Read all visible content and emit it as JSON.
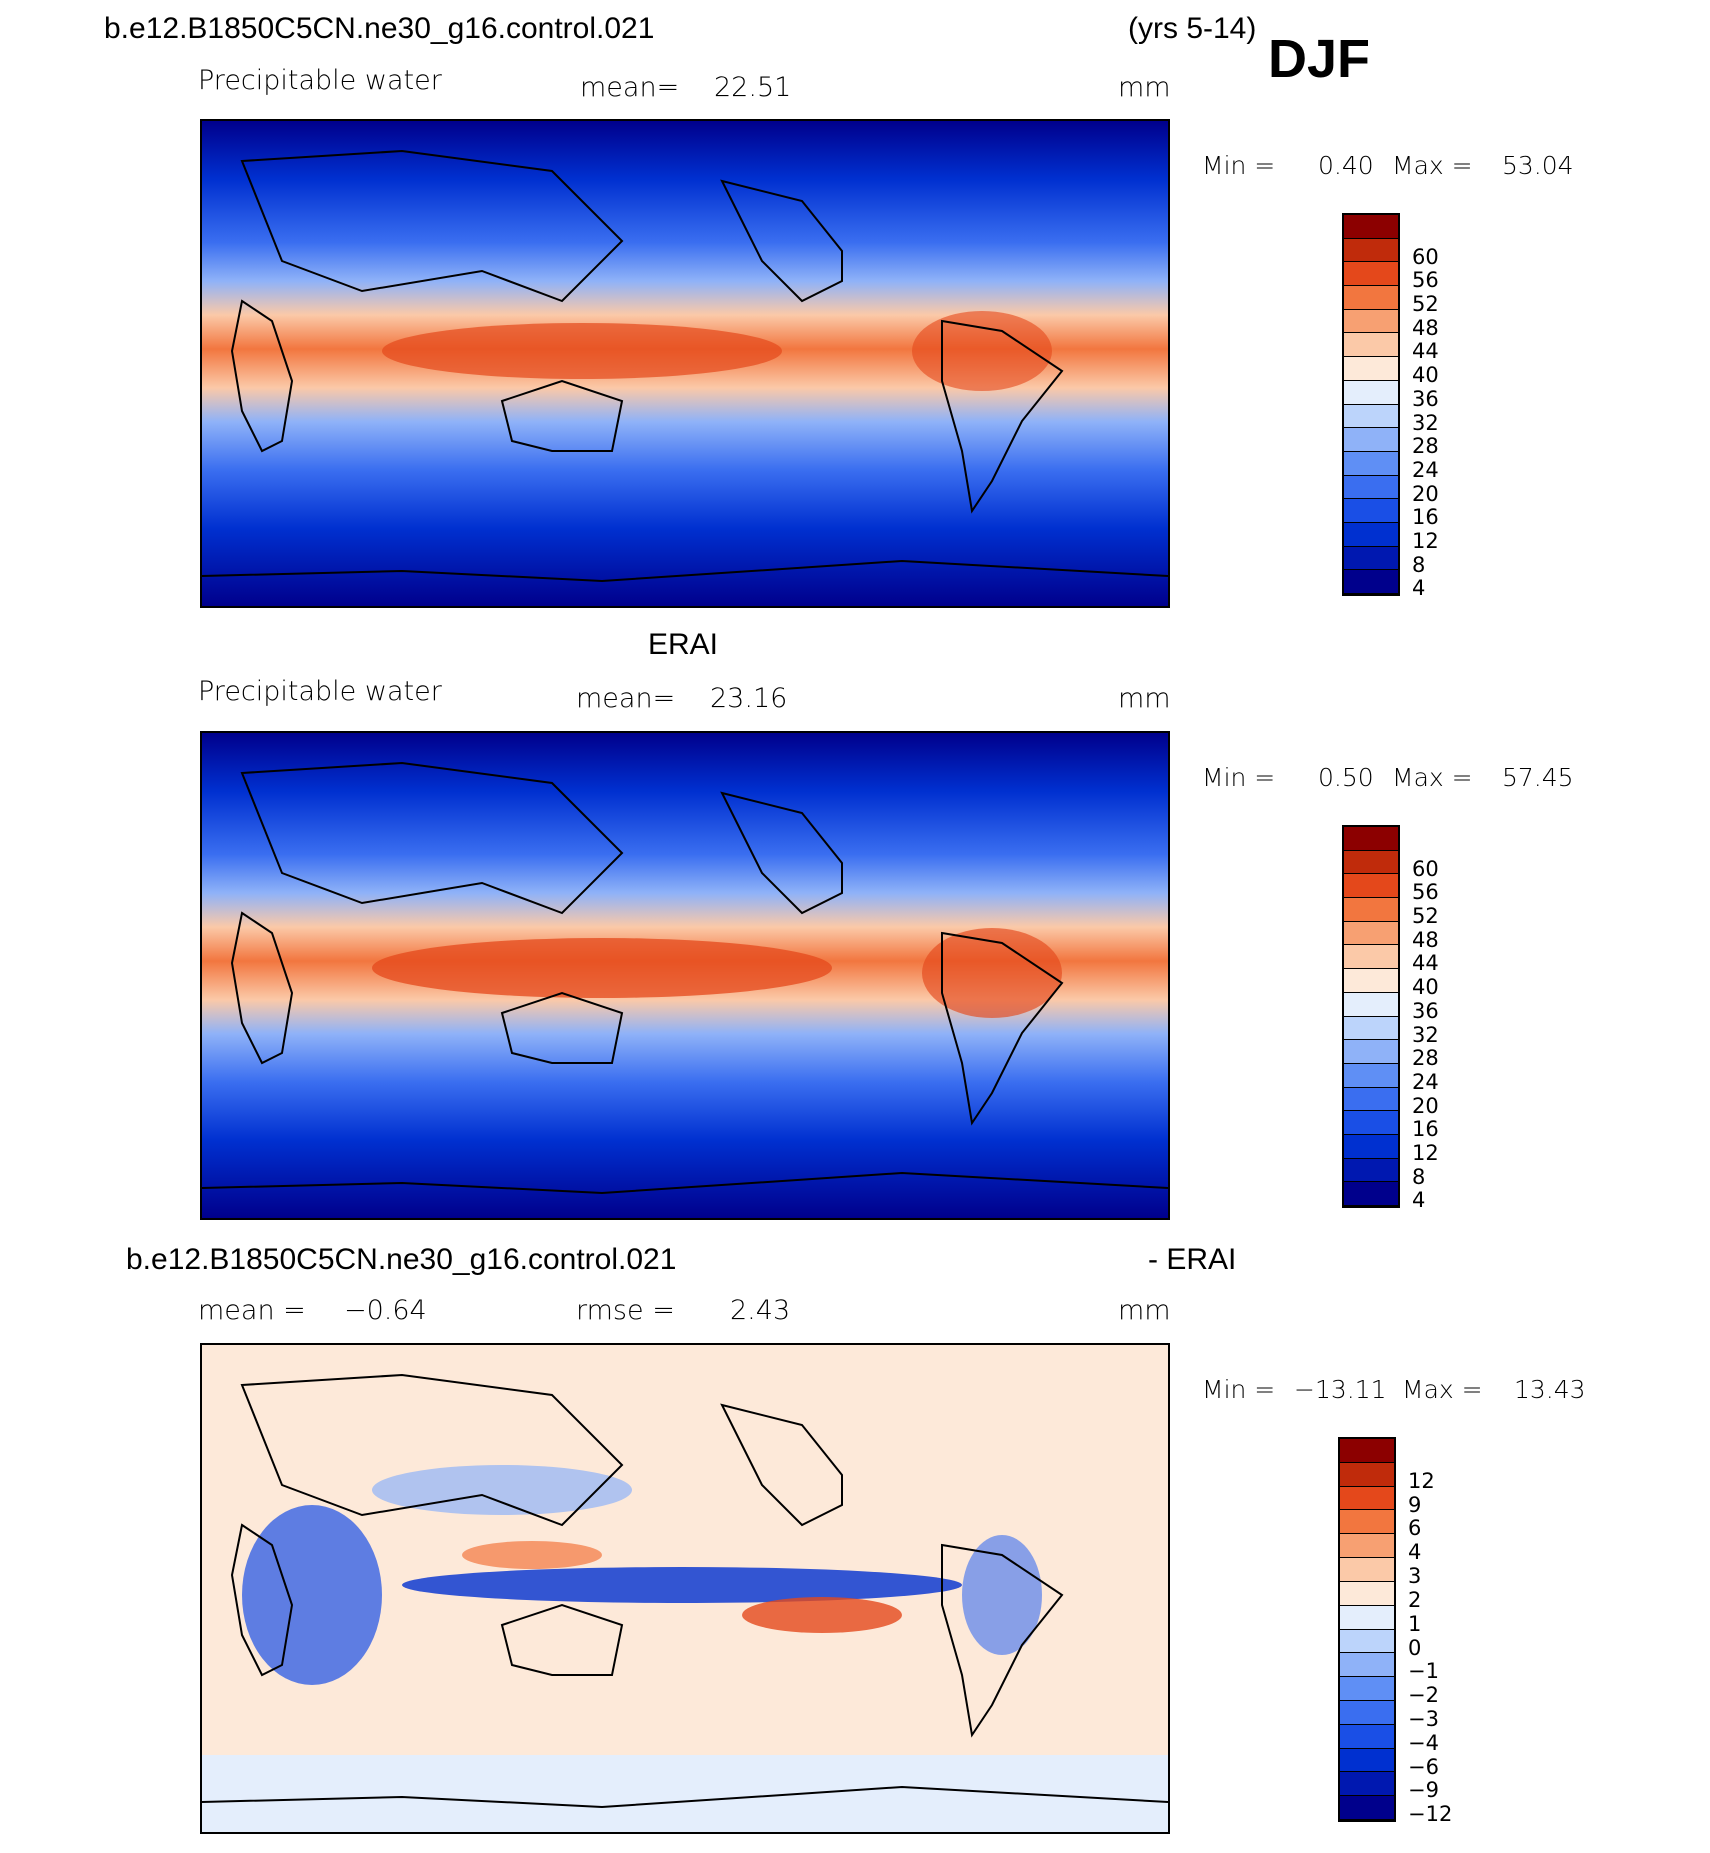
{
  "header": {
    "case_name": "b.e12.B1850C5CN.ne30_g16.control.021",
    "years": "(yrs 5-14)",
    "season": "DJF"
  },
  "panels": [
    {
      "id": "model",
      "title": "",
      "variable": "Precipitable water",
      "stat1_label": "mean=",
      "stat1_value": "22.51",
      "stat2_label": "",
      "stat2_value": "",
      "units": "mm",
      "minmax": {
        "min_label": "Min =",
        "min_value": "0.40",
        "max_label": "Max =",
        "max_value": "53.04"
      }
    },
    {
      "id": "obs",
      "title": "ERAI",
      "variable": "Precipitable water",
      "stat1_label": "mean=",
      "stat1_value": "23.16",
      "stat2_label": "",
      "stat2_value": "",
      "units": "mm",
      "minmax": {
        "min_label": "Min =",
        "min_value": "0.50",
        "max_label": "Max =",
        "max_value": "57.45"
      }
    },
    {
      "id": "diff",
      "title_left": "b.e12.B1850C5CN.ne30_g16.control.021",
      "title_right": "- ERAI",
      "variable": "",
      "stat1_label": "mean =",
      "stat1_value": "−0.64",
      "stat2_label": "rmse =",
      "stat2_value": "2.43",
      "units": "mm",
      "minmax": {
        "min_label": "Min =",
        "min_value": "−13.11",
        "max_label": "Max =",
        "max_value": "13.43"
      }
    }
  ],
  "chart_data": [
    {
      "type": "heatmap",
      "title": "b.e12.B1850C5CN.ne30_g16.control.021 (yrs 5-14) DJF",
      "variable": "Precipitable water",
      "units": "mm",
      "mean": 22.51,
      "min": 0.4,
      "max": 53.04,
      "colorbar_levels": [
        4,
        8,
        12,
        16,
        20,
        24,
        28,
        32,
        36,
        40,
        44,
        48,
        52,
        56,
        60
      ],
      "colorbar_colors": [
        "#00008c",
        "#0018b0",
        "#0030d0",
        "#1a4fe6",
        "#3a6ef0",
        "#5f8ff5",
        "#8fb2f8",
        "#bcd4fb",
        "#e4eefc",
        "#fde9d9",
        "#fbc9a8",
        "#f7a072",
        "#f2763f",
        "#e4481b",
        "#c02b0b",
        "#8c0000"
      ]
    },
    {
      "type": "heatmap",
      "title": "ERAI",
      "variable": "Precipitable water",
      "units": "mm",
      "mean": 23.16,
      "min": 0.5,
      "max": 57.45,
      "colorbar_levels": [
        4,
        8,
        12,
        16,
        20,
        24,
        28,
        32,
        36,
        40,
        44,
        48,
        52,
        56,
        60
      ],
      "colorbar_colors": [
        "#00008c",
        "#0018b0",
        "#0030d0",
        "#1a4fe6",
        "#3a6ef0",
        "#5f8ff5",
        "#8fb2f8",
        "#bcd4fb",
        "#e4eefc",
        "#fde9d9",
        "#fbc9a8",
        "#f7a072",
        "#f2763f",
        "#e4481b",
        "#c02b0b",
        "#8c0000"
      ]
    },
    {
      "type": "heatmap",
      "title": "b.e12.B1850C5CN.ne30_g16.control.021 - ERAI",
      "units": "mm",
      "mean": -0.64,
      "rmse": 2.43,
      "min": -13.11,
      "max": 13.43,
      "colorbar_levels": [
        "−12",
        "−9",
        "−6",
        "−4",
        "−3",
        "−2",
        "−1",
        "0",
        "1",
        "2",
        "3",
        "4",
        "6",
        "9",
        "12"
      ],
      "colorbar_colors": [
        "#00008c",
        "#0018b0",
        "#0030d0",
        "#1a4fe6",
        "#3a6ef0",
        "#5f8ff5",
        "#8fb2f8",
        "#bcd4fb",
        "#e4eefc",
        "#fde9d9",
        "#fbc9a8",
        "#f7a072",
        "#f2763f",
        "#e4481b",
        "#c02b0b",
        "#8c0000"
      ]
    }
  ]
}
